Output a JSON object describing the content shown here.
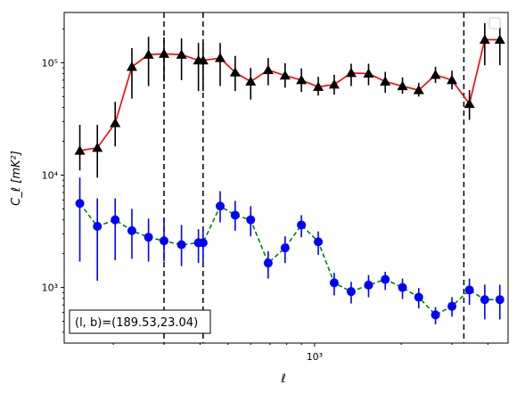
{
  "chart_data": {
    "type": "scatter",
    "xlabel": "ℓ",
    "ylabel": "C_ℓ  [mK²]",
    "xscale": "log",
    "yscale": "log",
    "xlim": [
      135,
      4700
    ],
    "ylim": [
      320,
      280000
    ],
    "x_ticks": [
      {
        "value": 1000,
        "label": "10³"
      }
    ],
    "y_ticks": [
      {
        "value": 1000,
        "label": "10³"
      },
      {
        "value": 10000,
        "label": "10⁴"
      },
      {
        "value": 100000,
        "label": "10⁵"
      }
    ],
    "legend": {
      "position": "top-right",
      "entries": []
    },
    "annotation": "(l, b)=(189.53,23.04)",
    "vlines": [
      {
        "x": 300
      },
      {
        "x": 410
      },
      {
        "x": 3300
      }
    ],
    "x": [
      153,
      176,
      203,
      232,
      265,
      300,
      345,
      395,
      410,
      470,
      530,
      600,
      690,
      790,
      900,
      1030,
      1170,
      1340,
      1540,
      1760,
      2020,
      2300,
      2630,
      3000,
      3450,
      3900,
      4400
    ],
    "series": [
      {
        "marker": "triangle",
        "color": "#000000",
        "fit_color": "#ff0000",
        "fit_style": "solid",
        "values": [
          16500,
          17500,
          29000,
          92000,
          118000,
          120000,
          118000,
          105000,
          105000,
          110000,
          82000,
          68000,
          86000,
          77000,
          70000,
          61000,
          64000,
          81000,
          80000,
          68000,
          62000,
          57000,
          78000,
          70000,
          43000,
          160000,
          160000
        ],
        "err_low": [
          11000,
          9500,
          18000,
          48000,
          62000,
          68000,
          70000,
          56000,
          56000,
          62000,
          56000,
          47000,
          63000,
          60000,
          55000,
          51000,
          52000,
          62000,
          63000,
          54000,
          53000,
          50000,
          66000,
          58000,
          31000,
          95000,
          95000
        ],
        "err_high": [
          28000,
          28000,
          45000,
          135000,
          170000,
          168000,
          165000,
          150000,
          150000,
          150000,
          115000,
          90000,
          110000,
          99000,
          89000,
          75000,
          78000,
          98000,
          98000,
          83000,
          74000,
          66000,
          92000,
          85000,
          57000,
          225000,
          225000
        ]
      },
      {
        "marker": "circle",
        "color": "#0000ff",
        "fit_color": "#008000",
        "fit_style": "dashed",
        "values": [
          5600,
          3500,
          4000,
          3200,
          2800,
          2600,
          2400,
          2500,
          2500,
          5300,
          4400,
          4000,
          1650,
          2250,
          3600,
          2550,
          1100,
          920,
          1050,
          1180,
          1000,
          820,
          570,
          680,
          950,
          780,
          780
        ],
        "err_low": [
          1700,
          1150,
          1750,
          1800,
          1700,
          1700,
          1550,
          1650,
          1650,
          3800,
          3200,
          2850,
          1200,
          1650,
          2800,
          1950,
          850,
          720,
          820,
          950,
          790,
          650,
          470,
          550,
          700,
          520,
          520
        ],
        "err_high": [
          9500,
          6200,
          6200,
          5000,
          4100,
          4200,
          3600,
          3300,
          3300,
          7200,
          5900,
          5300,
          2100,
          2850,
          4400,
          3150,
          1350,
          1120,
          1290,
          1380,
          1200,
          990,
          670,
          820,
          1200,
          1060,
          1060
        ]
      }
    ]
  }
}
